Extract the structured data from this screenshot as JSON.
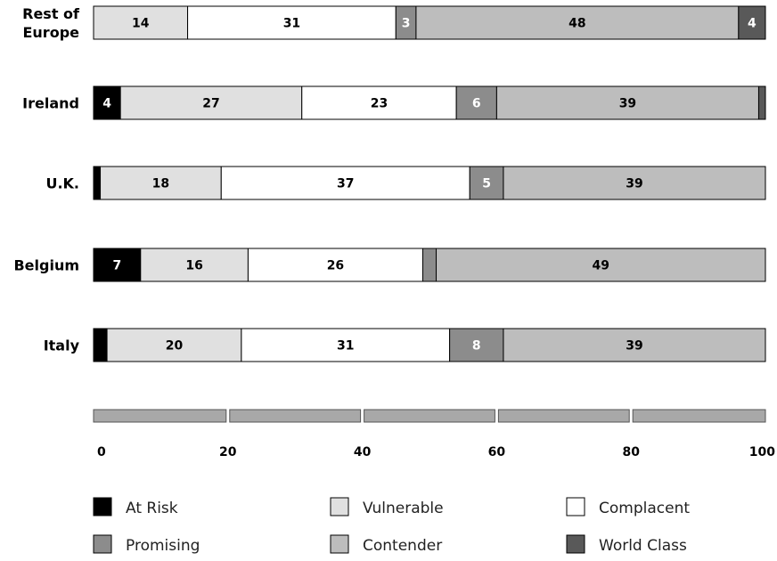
{
  "chart_data": {
    "type": "bar",
    "orientation": "horizontal",
    "stacked": true,
    "categories": [
      "Rest of Europe",
      "Ireland",
      "U.K.",
      "Belgium",
      "Italy"
    ],
    "category_lines": [
      [
        "Rest of",
        "Europe"
      ],
      [
        "Ireland"
      ],
      [
        "U.K."
      ],
      [
        "Belgium"
      ],
      [
        "Italy"
      ]
    ],
    "series": [
      {
        "name": "At Risk",
        "color": "#000000",
        "label_color": "#ffffff",
        "values": [
          0,
          4,
          1,
          7,
          2
        ]
      },
      {
        "name": "Vulnerable",
        "color": "#e0e0e0",
        "label_color": "#000000",
        "values": [
          14,
          27,
          18,
          16,
          20
        ]
      },
      {
        "name": "Complacent",
        "color": "#ffffff",
        "label_color": "#000000",
        "values": [
          31,
          23,
          37,
          26,
          31
        ]
      },
      {
        "name": "Promising",
        "color": "#8c8c8c",
        "label_color": "#ffffff",
        "values": [
          3,
          6,
          5,
          2,
          8
        ]
      },
      {
        "name": "Contender",
        "color": "#bdbdbd",
        "label_color": "#000000",
        "values": [
          48,
          39,
          39,
          49,
          39
        ]
      },
      {
        "name": "World Class",
        "color": "#595959",
        "label_color": "#ffffff",
        "values": [
          4,
          1,
          0,
          0,
          0
        ]
      }
    ],
    "labels": [
      [
        "",
        "14",
        "31",
        "3",
        "48",
        "4"
      ],
      [
        "4",
        "27",
        "23",
        "6",
        "39",
        ""
      ],
      [
        "",
        "18",
        "37",
        "5",
        "39",
        ""
      ],
      [
        "7",
        "16",
        "26",
        "",
        "49",
        ""
      ],
      [
        "",
        "20",
        "31",
        "8",
        "39",
        ""
      ]
    ],
    "xlim": [
      0,
      100
    ],
    "xticks": [
      "0",
      "20",
      "40",
      "60",
      "80",
      "100"
    ],
    "legend_position": "bottom",
    "legend_columns": 3
  }
}
